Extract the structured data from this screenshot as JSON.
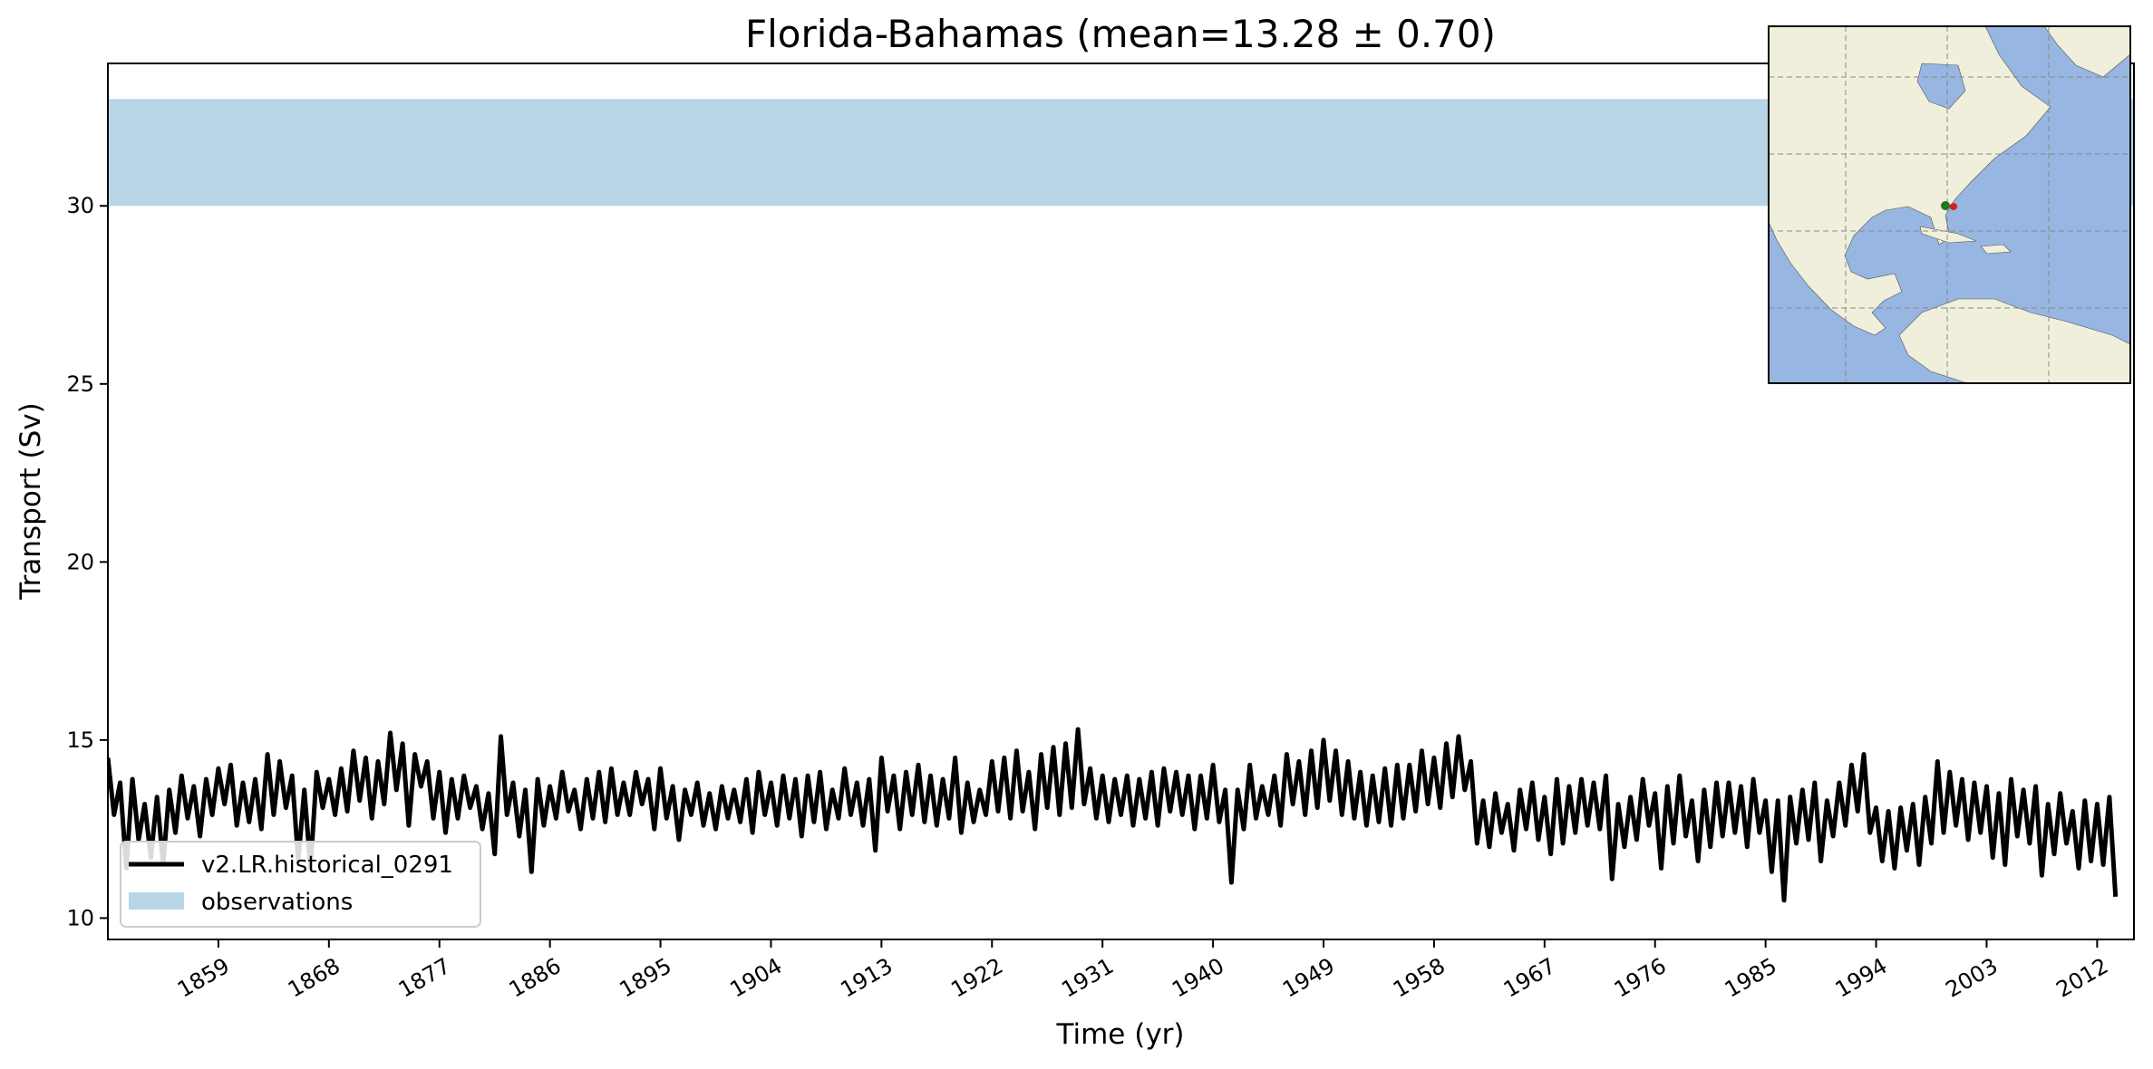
{
  "chart_data": {
    "type": "line",
    "title": "Florida-Bahamas (mean=13.28 ± 0.70)",
    "xlabel": "Time (yr)",
    "ylabel": "Transport (Sv)",
    "xlim": [
      1850,
      2015
    ],
    "ylim": [
      9.4,
      34.0
    ],
    "x_ticks": [
      1859,
      1868,
      1877,
      1886,
      1895,
      1904,
      1913,
      1922,
      1931,
      1940,
      1949,
      1958,
      1967,
      1976,
      1985,
      1994,
      2003,
      2012
    ],
    "y_ticks": [
      10,
      15,
      20,
      25,
      30
    ],
    "grid": false,
    "legend_position": "lower-left",
    "observations_band": {
      "name": "observations",
      "y_min": 30.0,
      "y_max": 33.0,
      "color": "#b8d5e7"
    },
    "series": [
      {
        "name": "v2.LR.historical_0291",
        "color": "#000000",
        "x_start": 1850,
        "x_step": 0.5,
        "values": [
          14.5,
          12.9,
          13.8,
          11.4,
          13.9,
          12.2,
          13.2,
          11.7,
          13.4,
          11.5,
          13.6,
          12.4,
          14.0,
          12.8,
          13.7,
          12.3,
          13.9,
          12.9,
          14.2,
          13.2,
          14.3,
          12.6,
          13.8,
          12.7,
          13.9,
          12.5,
          14.6,
          12.9,
          14.4,
          13.1,
          14.0,
          11.6,
          13.6,
          11.4,
          14.1,
          13.1,
          13.9,
          12.9,
          14.2,
          13.0,
          14.7,
          13.3,
          14.5,
          12.8,
          14.4,
          13.2,
          15.2,
          13.6,
          14.9,
          12.6,
          14.6,
          13.7,
          14.4,
          12.8,
          14.1,
          12.4,
          13.9,
          12.8,
          14.0,
          13.1,
          13.7,
          12.5,
          13.5,
          11.8,
          15.1,
          12.9,
          13.8,
          12.3,
          13.6,
          11.3,
          13.9,
          12.6,
          13.7,
          12.8,
          14.1,
          13.0,
          13.6,
          12.5,
          13.9,
          12.8,
          14.1,
          12.7,
          14.2,
          12.9,
          13.8,
          12.9,
          14.1,
          13.2,
          13.9,
          12.5,
          14.2,
          12.8,
          13.7,
          12.2,
          13.6,
          12.9,
          13.8,
          12.6,
          13.5,
          12.5,
          13.7,
          12.8,
          13.6,
          12.7,
          13.9,
          12.4,
          14.1,
          12.9,
          13.8,
          12.6,
          14.0,
          12.8,
          13.9,
          12.3,
          14.0,
          12.7,
          14.1,
          12.5,
          13.6,
          12.8,
          14.2,
          12.9,
          13.8,
          12.6,
          13.9,
          11.9,
          14.5,
          13.0,
          14.0,
          12.5,
          14.1,
          12.9,
          14.3,
          12.7,
          14.0,
          12.6,
          13.9,
          12.8,
          14.5,
          12.4,
          13.8,
          12.7,
          13.6,
          12.9,
          14.4,
          13.0,
          14.5,
          12.8,
          14.7,
          13.0,
          14.1,
          12.5,
          14.6,
          13.1,
          14.8,
          12.9,
          14.9,
          13.1,
          15.3,
          13.2,
          14.2,
          12.8,
          14.0,
          12.7,
          13.9,
          12.9,
          14.0,
          12.6,
          13.9,
          12.8,
          14.1,
          12.6,
          14.2,
          13.0,
          14.1,
          12.9,
          14.0,
          12.5,
          14.0,
          12.8,
          14.3,
          12.7,
          13.6,
          11.0,
          13.6,
          12.5,
          14.3,
          12.8,
          13.7,
          12.9,
          14.0,
          12.6,
          14.6,
          13.2,
          14.4,
          12.9,
          14.7,
          13.1,
          15.0,
          13.3,
          14.7,
          12.9,
          14.4,
          12.8,
          14.1,
          12.6,
          14.0,
          12.7,
          14.2,
          12.6,
          14.3,
          12.8,
          14.3,
          13.0,
          14.7,
          13.2,
          14.5,
          13.1,
          14.9,
          13.4,
          15.1,
          13.6,
          14.4,
          12.1,
          13.3,
          12.0,
          13.5,
          12.4,
          13.2,
          11.9,
          13.6,
          12.5,
          13.8,
          12.2,
          13.4,
          11.8,
          13.9,
          12.1,
          13.7,
          12.4,
          13.9,
          12.6,
          13.8,
          12.5,
          14.0,
          11.1,
          13.2,
          12.0,
          13.4,
          12.2,
          13.9,
          12.6,
          13.5,
          11.4,
          13.7,
          12.1,
          14.0,
          12.3,
          13.3,
          11.6,
          13.6,
          12.0,
          13.8,
          12.3,
          13.8,
          12.4,
          13.7,
          12.0,
          13.9,
          12.4,
          13.3,
          11.3,
          13.3,
          10.5,
          13.4,
          12.1,
          13.6,
          12.2,
          13.8,
          11.6,
          13.3,
          12.3,
          13.8,
          12.6,
          14.3,
          13.0,
          14.6,
          12.4,
          13.1,
          11.6,
          13.0,
          11.4,
          13.1,
          11.9,
          13.2,
          11.5,
          13.4,
          12.1,
          14.4,
          12.4,
          14.1,
          12.6,
          13.9,
          12.2,
          13.8,
          12.4,
          13.7,
          11.7,
          13.5,
          11.5,
          13.9,
          12.3,
          13.6,
          12.1,
          13.7,
          11.2,
          13.2,
          11.8,
          13.5,
          12.1,
          13.0,
          11.4,
          13.3,
          11.6,
          13.2,
          11.5,
          13.4,
          10.6
        ]
      }
    ]
  }
}
